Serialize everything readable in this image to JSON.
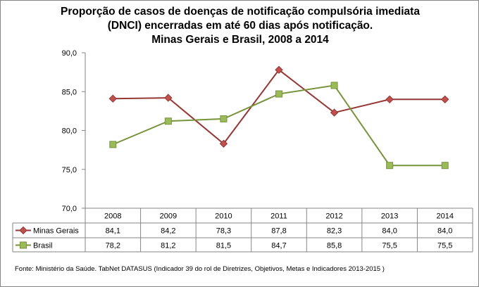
{
  "chart_data": {
    "type": "line",
    "title": [
      "Proporção de casos de doenças de notificação compulsória imediata",
      "(DNCI) encerradas em até 60 dias após notificação.",
      "Minas Gerais e Brasil, 2008 a 2014"
    ],
    "categories": [
      "2008",
      "2009",
      "2010",
      "2011",
      "2012",
      "2013",
      "2014"
    ],
    "series": [
      {
        "name": "Minas Gerais",
        "values": [
          84.1,
          84.2,
          78.3,
          87.8,
          82.3,
          84.0,
          84.0
        ],
        "labels": [
          "84,1",
          "84,2",
          "78,3",
          "87,8",
          "82,3",
          "84,0",
          "84,0"
        ],
        "color": "#953735",
        "marker_fill": "#C0504D",
        "marker": "diamond"
      },
      {
        "name": "Brasil",
        "values": [
          78.2,
          81.2,
          81.5,
          84.7,
          85.8,
          75.5,
          75.5
        ],
        "labels": [
          "78,2",
          "81,2",
          "81,5",
          "84,7",
          "85,8",
          "75,5",
          "75,5"
        ],
        "color": "#77933C",
        "marker_fill": "#9BBB59",
        "marker": "square"
      }
    ],
    "ylim": [
      70,
      90
    ],
    "yticks": [
      70,
      75,
      80,
      85,
      90
    ],
    "ytick_labels": [
      "70,0",
      "75,0",
      "80,0",
      "85,0",
      "90,0"
    ],
    "grid": false,
    "legend": "data-table",
    "xlabel": "",
    "ylabel": ""
  },
  "source": "Fonte: Ministério da Saúde. TabNet DATASUS (Indicador 39 do rol de Diretrizes, Objetivos, Metas e Indicadores 2013-2015 )"
}
